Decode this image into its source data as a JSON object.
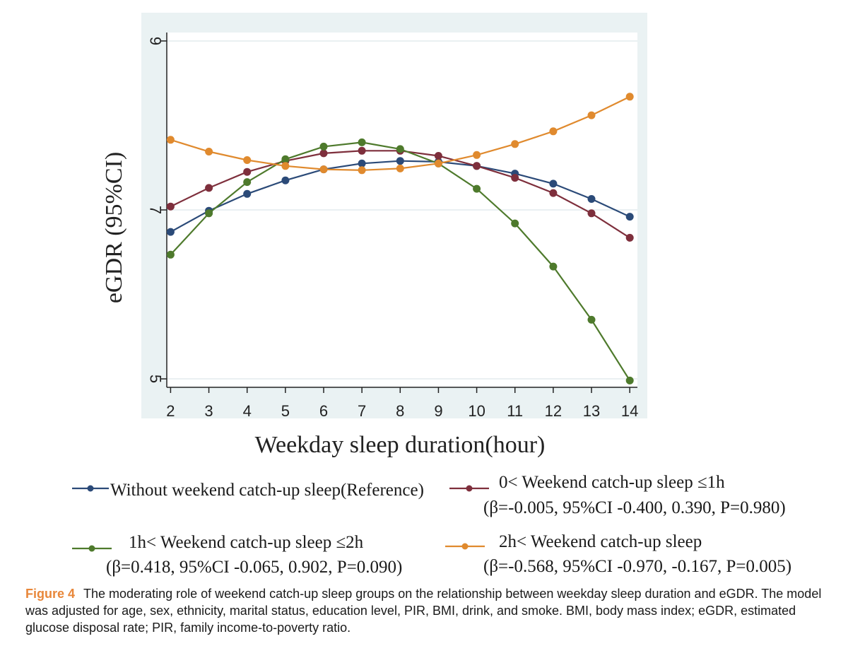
{
  "chart_data": {
    "type": "line",
    "xlabel": "Weekday sleep duration(hour)",
    "ylabel": "eGDR (95%CI)",
    "x": [
      2,
      3,
      4,
      5,
      6,
      7,
      8,
      9,
      10,
      11,
      12,
      13,
      14
    ],
    "xlim": [
      1.9,
      14.2
    ],
    "ylim": [
      4.9,
      9.1
    ],
    "yticks": [
      5,
      7,
      9
    ],
    "grid": true,
    "legend_placement": "below",
    "series": [
      {
        "name": "Without weekend catch-up sleep(Reference)",
        "note": "",
        "color": "#2b4a78",
        "values": [
          6.74,
          6.99,
          7.19,
          7.35,
          7.48,
          7.55,
          7.58,
          7.57,
          7.52,
          7.43,
          7.31,
          7.13,
          6.92
        ]
      },
      {
        "name": "0< Weekend catch-up sleep ≤1h",
        "note": "(β=-0.005, 95%CI -0.400, 0.390, P=0.980)",
        "color": "#7e2f3c",
        "values": [
          7.04,
          7.26,
          7.45,
          7.58,
          7.67,
          7.7,
          7.7,
          7.64,
          7.52,
          7.38,
          7.2,
          6.96,
          6.67
        ]
      },
      {
        "name": "1h< Weekend catch-up sleep ≤2h",
        "note": "(β=0.418, 95%CI -0.065, 0.902, P=0.090)",
        "color": "#4e7a2c",
        "values": [
          6.47,
          6.96,
          7.33,
          7.6,
          7.75,
          7.8,
          7.72,
          7.55,
          7.25,
          6.84,
          6.33,
          5.7,
          4.98
        ]
      },
      {
        "name": "2h< Weekend catch-up sleep",
        "note": "(β=-0.568, 95%CI -0.970, -0.167, P=0.005)",
        "color": "#e08a2e",
        "values": [
          7.83,
          7.69,
          7.59,
          7.52,
          7.48,
          7.47,
          7.49,
          7.55,
          7.65,
          7.78,
          7.93,
          8.12,
          8.34
        ]
      }
    ]
  },
  "caption": {
    "label": "Figure 4",
    "text": "The moderating role of weekend catch-up sleep groups on the relationship between weekday sleep duration and eGDR. The model was adjusted for age, sex, ethnicity, marital status, education level, PIR, BMI, drink, and smoke. BMI, body mass index; eGDR, estimated glucose disposal rate; PIR, family income-to-poverty ratio."
  },
  "colors": {
    "plot_region_bg": "#eaf2f3",
    "plot_bg": "#ffffff",
    "axis": "#222222",
    "grid": "#e4ecee"
  }
}
